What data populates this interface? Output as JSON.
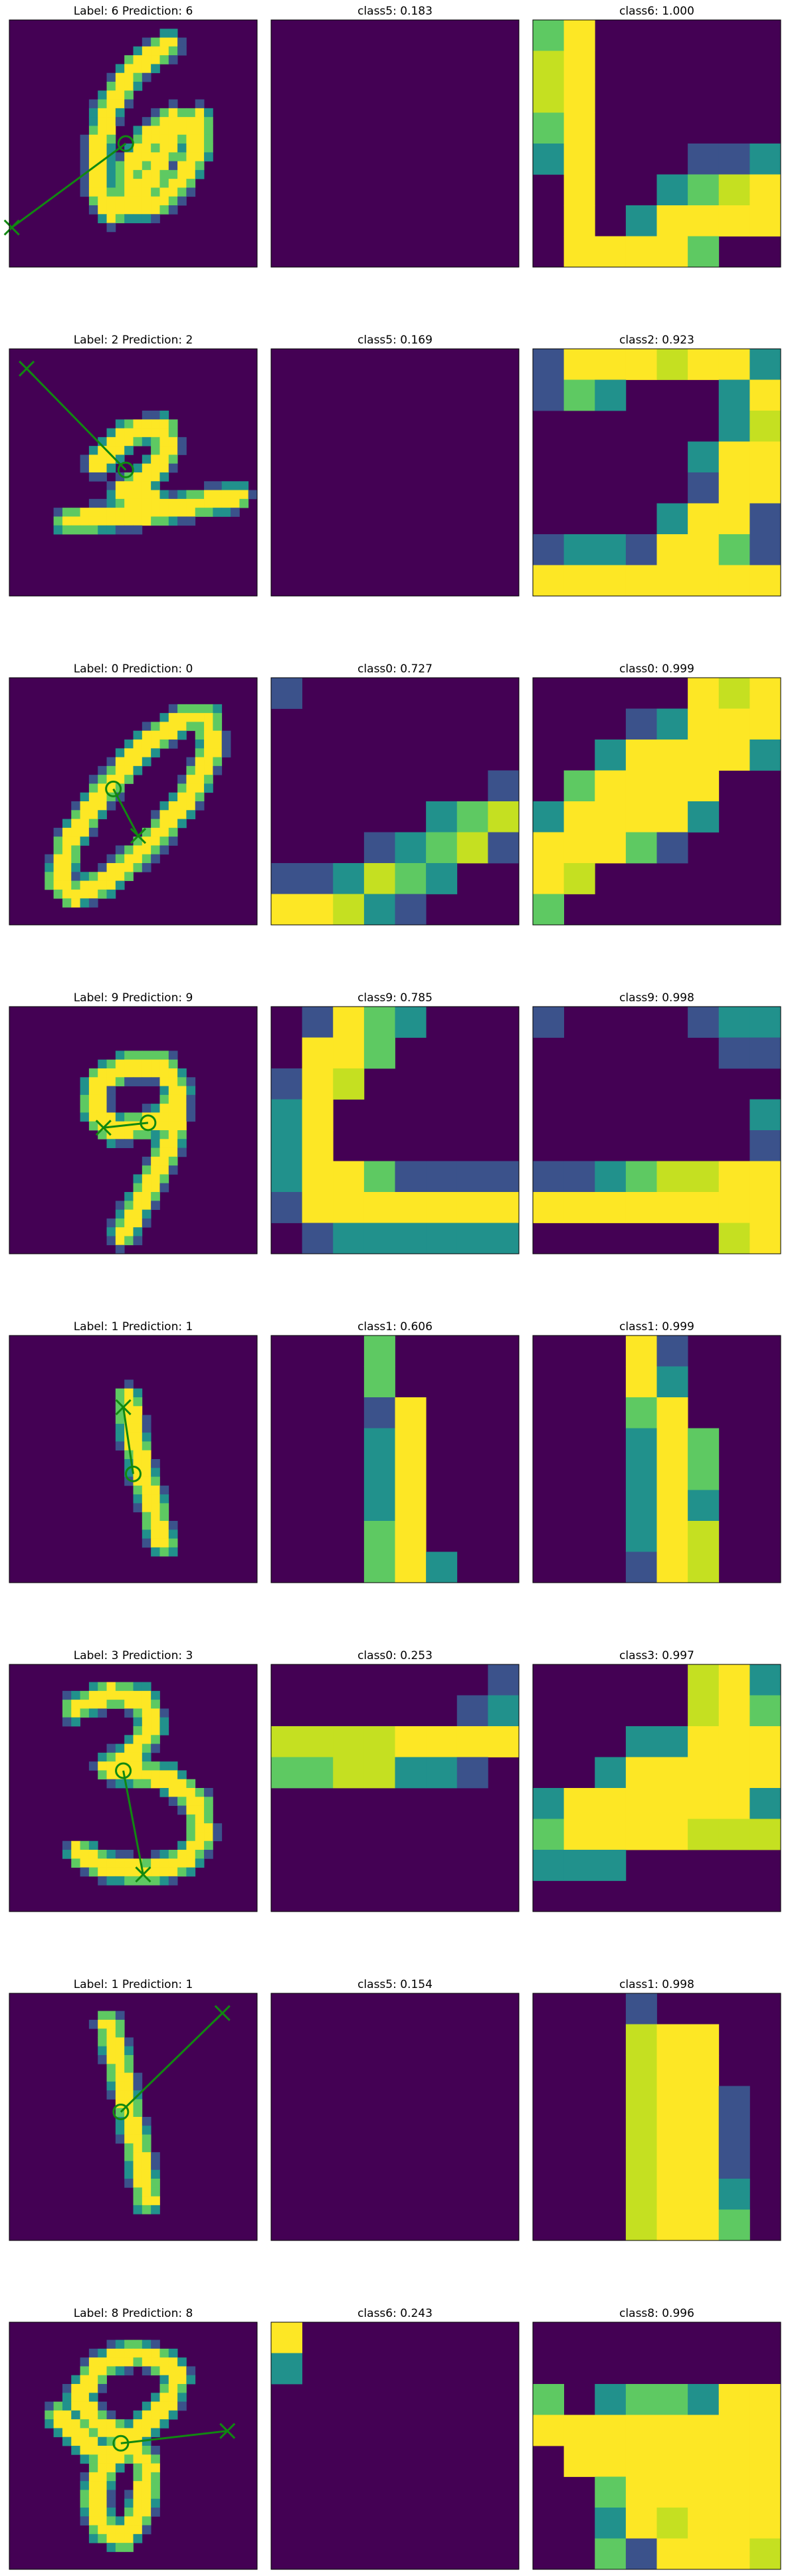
{
  "colors": {
    "dark": "#440154",
    "blue": "#3b528b",
    "teal": "#21918c",
    "green": "#5ec962",
    "lime": "#c5e021",
    "yellow": "#fde725",
    "arrow": "#118811"
  },
  "chart_data": [
    {
      "type": "heatmap",
      "row": 0,
      "col": 0,
      "title": "Label: 6 Prediction: 6",
      "grid": false,
      "image": "digit6"
    },
    {
      "type": "heatmap",
      "row": 0,
      "col": 1,
      "title": "class5: 0.183",
      "grid": false,
      "image": "blank"
    },
    {
      "type": "heatmap",
      "row": 0,
      "col": 2,
      "title": "class6: 1.000",
      "grid": false,
      "image": "map6"
    },
    {
      "type": "heatmap",
      "row": 1,
      "col": 0,
      "title": "Label: 2 Prediction: 2",
      "grid": false,
      "image": "digit2"
    },
    {
      "type": "heatmap",
      "row": 1,
      "col": 1,
      "title": "class5: 0.169",
      "grid": false,
      "image": "blank"
    },
    {
      "type": "heatmap",
      "row": 1,
      "col": 2,
      "title": "class2: 0.923",
      "grid": false,
      "image": "map2"
    },
    {
      "type": "heatmap",
      "row": 2,
      "col": 0,
      "title": "Label: 0 Prediction: 0",
      "grid": false,
      "image": "digit0"
    },
    {
      "type": "heatmap",
      "row": 2,
      "col": 1,
      "title": "class0: 0.727",
      "grid": false,
      "image": "map0a"
    },
    {
      "type": "heatmap",
      "row": 2,
      "col": 2,
      "title": "class0: 0.999",
      "grid": false,
      "image": "map0b"
    },
    {
      "type": "heatmap",
      "row": 3,
      "col": 0,
      "title": "Label: 9 Prediction: 9",
      "grid": false,
      "image": "digit9"
    },
    {
      "type": "heatmap",
      "row": 3,
      "col": 1,
      "title": "class9: 0.785",
      "grid": false,
      "image": "map9a"
    },
    {
      "type": "heatmap",
      "row": 3,
      "col": 2,
      "title": "class9: 0.998",
      "grid": false,
      "image": "map9b"
    },
    {
      "type": "heatmap",
      "row": 4,
      "col": 0,
      "title": "Label: 1 Prediction: 1",
      "grid": false,
      "image": "digit1"
    },
    {
      "type": "heatmap",
      "row": 4,
      "col": 1,
      "title": "class1: 0.606",
      "grid": false,
      "image": "map1a"
    },
    {
      "type": "heatmap",
      "row": 4,
      "col": 2,
      "title": "class1: 0.999",
      "grid": false,
      "image": "map1b"
    },
    {
      "type": "heatmap",
      "row": 5,
      "col": 0,
      "title": "Label: 3 Prediction: 3",
      "grid": false,
      "image": "digit3"
    },
    {
      "type": "heatmap",
      "row": 5,
      "col": 1,
      "title": "class0: 0.253",
      "grid": false,
      "image": "map3a"
    },
    {
      "type": "heatmap",
      "row": 5,
      "col": 2,
      "title": "class3: 0.997",
      "grid": false,
      "image": "map3b"
    },
    {
      "type": "heatmap",
      "row": 6,
      "col": 0,
      "title": "Label: 1 Prediction: 1",
      "grid": false,
      "image": "digit1b"
    },
    {
      "type": "heatmap",
      "row": 6,
      "col": 1,
      "title": "class5: 0.154",
      "grid": false,
      "image": "blank"
    },
    {
      "type": "heatmap",
      "row": 6,
      "col": 2,
      "title": "class1: 0.998",
      "grid": false,
      "image": "map1c"
    },
    {
      "type": "heatmap",
      "row": 7,
      "col": 0,
      "title": "Label: 8 Prediction: 8",
      "grid": false,
      "image": "digit8"
    },
    {
      "type": "heatmap",
      "row": 7,
      "col": 1,
      "title": "class6: 0.243",
      "grid": false,
      "image": "map8a"
    },
    {
      "type": "heatmap",
      "row": 7,
      "col": 2,
      "title": "class8: 0.996",
      "grid": false,
      "image": "map8b"
    }
  ]
}
